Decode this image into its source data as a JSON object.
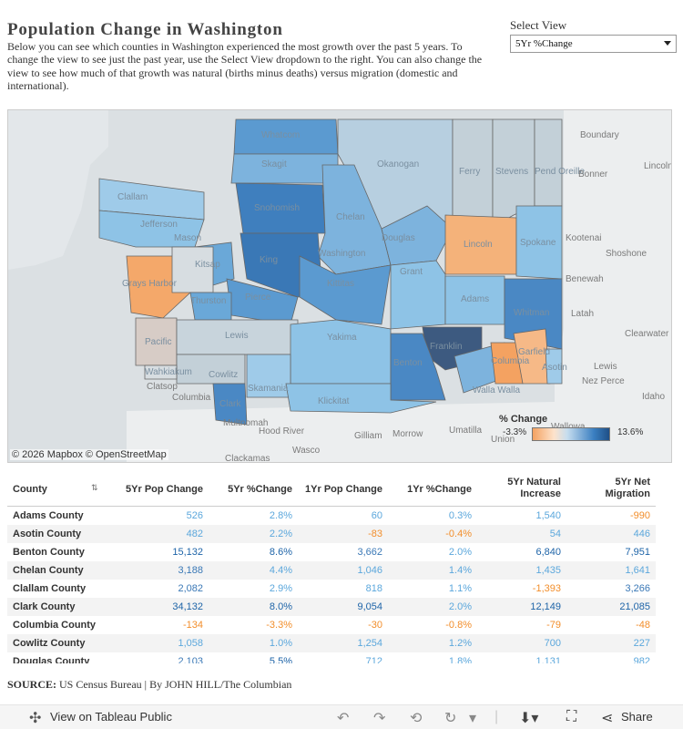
{
  "header": {
    "title": "Population Change in Washington",
    "description": "Below you can see which counties in Washington experienced the most growth over the past 5 years. To change the view to see just the past year, use the Select View dropdown to the right. You can also change the view to see how much of that growth was natural (births minus deaths) versus migration (domestic and international)."
  },
  "select_view": {
    "label": "Select View",
    "value": "5Yr %Change"
  },
  "map": {
    "attribution": "© 2026 Mapbox © OpenStreetMap",
    "county_labels": [
      "Whatcom",
      "Skagit",
      "Okanogan",
      "Ferry",
      "Stevens",
      "Pend Oreille",
      "Clallam",
      "Snohomish",
      "Chelan",
      "Jefferson",
      "Douglas",
      "Lincoln",
      "Spokane",
      "King",
      "Washington",
      "Kitsap",
      "Grays Harbor",
      "Mason",
      "Pierce",
      "Kittitas",
      "Grant",
      "Adams",
      "Whitman",
      "Thurston",
      "Pacific",
      "Lewis",
      "Yakima",
      "Franklin",
      "Wahkiakum",
      "Cowlitz",
      "Benton",
      "Columbia",
      "Garfield",
      "Asotin",
      "Skamania",
      "Walla Walla",
      "Clark",
      "Klickitat"
    ],
    "place_labels": [
      "Boundary",
      "Bonner",
      "Lincoln",
      "Kootenai",
      "Shoshone",
      "Benewah",
      "Latah",
      "Clearwater",
      "Lewis",
      "Nez Perce",
      "Idaho",
      "Clatsop",
      "Columbia",
      "Multnomah",
      "Hood River",
      "Wasco",
      "Clackamas",
      "Gilliam",
      "Morrow",
      "Umatilla",
      "Union",
      "Wallowa"
    ]
  },
  "legend": {
    "title": "% Change",
    "min": "-3.3%",
    "max": "13.6%"
  },
  "colors": {
    "low": "#f4a261",
    "mid": "#c6ddef",
    "high": "#1f4f86"
  },
  "table": {
    "columns": [
      "County",
      "5Yr Pop Change",
      "5Yr %Change",
      "1Yr Pop Change",
      "1Yr %Change",
      "5Yr Natural Increase",
      "5Yr Net Migration"
    ],
    "rows": [
      [
        "Adams County",
        "526",
        "2.8%",
        "60",
        "0.3%",
        "1,540",
        "-990"
      ],
      [
        "Asotin County",
        "482",
        "2.2%",
        "-83",
        "-0.4%",
        "54",
        "446"
      ],
      [
        "Benton County",
        "15,132",
        "8.6%",
        "3,662",
        "2.0%",
        "6,840",
        "7,951"
      ],
      [
        "Chelan County",
        "3,188",
        "4.4%",
        "1,046",
        "1.4%",
        "1,435",
        "1,641"
      ],
      [
        "Clallam County",
        "2,082",
        "2.9%",
        "818",
        "1.1%",
        "-1,393",
        "3,266"
      ],
      [
        "Clark County",
        "34,132",
        "8.0%",
        "9,054",
        "2.0%",
        "12,149",
        "21,085"
      ],
      [
        "Columbia County",
        "-134",
        "-3.3%",
        "-30",
        "-0.8%",
        "-79",
        "-48"
      ],
      [
        "Cowlitz County",
        "1,058",
        "1.0%",
        "1,254",
        "1.2%",
        "700",
        "227"
      ],
      [
        "Douglas County",
        "2,103",
        "5.5%",
        "712",
        "1.8%",
        "1,131",
        "982"
      ]
    ]
  },
  "source": {
    "label": "SOURCE:",
    "text": "US Census Bureau | By JOHN HILL/The Columbian"
  },
  "footer": {
    "view_link": "View on Tableau Public",
    "share": "Share"
  }
}
